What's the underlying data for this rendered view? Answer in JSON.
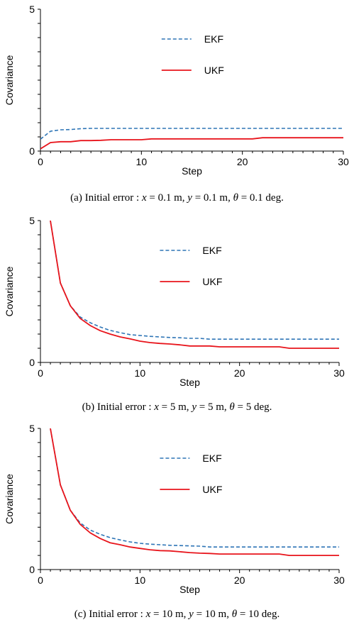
{
  "colors": {
    "ekf": "#2E75B6",
    "ukf": "#E8141B",
    "axis": "#000000"
  },
  "chart_data": [
    {
      "type": "line",
      "xlabel": "Step",
      "ylabel": "Covariance",
      "xlim": [
        0,
        30
      ],
      "ylim": [
        0,
        5
      ],
      "xticks": [
        "0",
        "10",
        "20",
        "30"
      ],
      "yticks": [
        "0",
        "5"
      ],
      "legend_position": "top-right",
      "caption": {
        "prefix": "(a) Initial error : ",
        "x": "x",
        "xv": " = 0.1 m, ",
        "y": "y",
        "yv": " = 0.1 m, ",
        "t": "θ",
        "tv": " = 0.1 deg."
      },
      "series": [
        {
          "name": "EKF",
          "style": "dashed",
          "x": [
            0,
            1,
            2,
            3,
            4,
            5,
            6,
            7,
            8,
            9,
            10,
            12,
            14,
            16,
            18,
            20,
            22,
            24,
            26,
            28,
            30
          ],
          "y": [
            0.42,
            0.7,
            0.75,
            0.76,
            0.79,
            0.8,
            0.8,
            0.8,
            0.8,
            0.8,
            0.8,
            0.8,
            0.8,
            0.8,
            0.8,
            0.8,
            0.8,
            0.8,
            0.8,
            0.8,
            0.8
          ]
        },
        {
          "name": "UKF",
          "style": "solid",
          "x": [
            0,
            1,
            2,
            3,
            4,
            5,
            6,
            7,
            8,
            9,
            10,
            11,
            12,
            14,
            16,
            18,
            20,
            21,
            22,
            24,
            26,
            28,
            30
          ],
          "y": [
            0.08,
            0.3,
            0.33,
            0.33,
            0.37,
            0.37,
            0.38,
            0.4,
            0.4,
            0.4,
            0.4,
            0.43,
            0.43,
            0.43,
            0.43,
            0.43,
            0.43,
            0.43,
            0.47,
            0.47,
            0.47,
            0.47,
            0.47
          ]
        }
      ]
    },
    {
      "type": "line",
      "xlabel": "Step",
      "ylabel": "Covariance",
      "xlim": [
        0,
        30
      ],
      "ylim": [
        0,
        5
      ],
      "xticks": [
        "0",
        "10",
        "20",
        "30"
      ],
      "yticks": [
        "0",
        "5"
      ],
      "legend_position": "top-right",
      "caption": {
        "prefix": "(b) Initial error : ",
        "x": "x",
        "xv": " = 5 m, ",
        "y": "y",
        "yv": " = 5 m, ",
        "t": "θ",
        "tv": " = 5 deg."
      },
      "series": [
        {
          "name": "EKF",
          "style": "dashed",
          "x": [
            1,
            2,
            3,
            4,
            5,
            6,
            7,
            8,
            9,
            10,
            11,
            12,
            13,
            14,
            15,
            16,
            17,
            18,
            20,
            22,
            24,
            26,
            28,
            30
          ],
          "y": [
            5.0,
            2.8,
            2.0,
            1.6,
            1.4,
            1.25,
            1.13,
            1.05,
            0.98,
            0.95,
            0.92,
            0.9,
            0.88,
            0.87,
            0.85,
            0.85,
            0.82,
            0.82,
            0.82,
            0.82,
            0.82,
            0.82,
            0.82,
            0.82
          ]
        },
        {
          "name": "UKF",
          "style": "solid",
          "x": [
            1,
            2,
            3,
            4,
            5,
            6,
            7,
            8,
            9,
            10,
            11,
            12,
            13,
            14,
            15,
            16,
            17,
            18,
            19,
            20,
            22,
            24,
            25,
            26,
            28,
            30
          ],
          "y": [
            5.0,
            2.8,
            2.0,
            1.55,
            1.3,
            1.12,
            1.0,
            0.9,
            0.83,
            0.75,
            0.7,
            0.67,
            0.65,
            0.62,
            0.58,
            0.58,
            0.58,
            0.55,
            0.55,
            0.55,
            0.55,
            0.55,
            0.5,
            0.5,
            0.5,
            0.5
          ]
        }
      ]
    },
    {
      "type": "line",
      "xlabel": "Step",
      "ylabel": "Covariance",
      "xlim": [
        0,
        30
      ],
      "ylim": [
        0,
        5
      ],
      "xticks": [
        "0",
        "10",
        "20",
        "30"
      ],
      "yticks": [
        "0",
        "5"
      ],
      "legend_position": "top-right",
      "caption": {
        "prefix": "(c) Initial error : ",
        "x": "x",
        "xv": " = 10 m, ",
        "y": "y",
        "yv": " = 10 m, ",
        "t": "θ",
        "tv": " = 10 deg."
      },
      "series": [
        {
          "name": "EKF",
          "style": "dashed",
          "x": [
            1,
            2,
            3,
            4,
            5,
            6,
            7,
            8,
            9,
            10,
            11,
            12,
            13,
            14,
            15,
            16,
            17,
            18,
            20,
            22,
            24,
            26,
            28,
            30
          ],
          "y": [
            5.0,
            3.0,
            2.1,
            1.65,
            1.4,
            1.25,
            1.13,
            1.05,
            0.98,
            0.93,
            0.9,
            0.88,
            0.86,
            0.85,
            0.84,
            0.83,
            0.8,
            0.8,
            0.8,
            0.8,
            0.8,
            0.8,
            0.8,
            0.8
          ]
        },
        {
          "name": "UKF",
          "style": "solid",
          "x": [
            1,
            2,
            3,
            4,
            5,
            6,
            7,
            8,
            9,
            10,
            11,
            12,
            13,
            14,
            15,
            16,
            17,
            18,
            19,
            20,
            22,
            24,
            25,
            26,
            28,
            30
          ],
          "y": [
            5.0,
            3.0,
            2.1,
            1.6,
            1.3,
            1.1,
            0.95,
            0.88,
            0.8,
            0.75,
            0.7,
            0.67,
            0.66,
            0.63,
            0.6,
            0.58,
            0.57,
            0.55,
            0.55,
            0.55,
            0.55,
            0.55,
            0.5,
            0.5,
            0.5,
            0.5
          ]
        }
      ]
    }
  ]
}
